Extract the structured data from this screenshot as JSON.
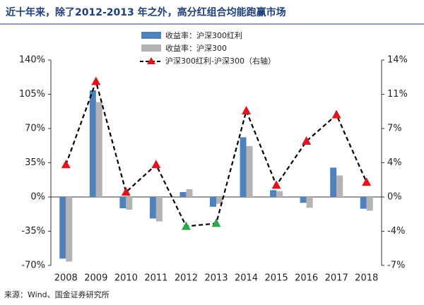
{
  "chart_data": {
    "type": "bar",
    "title": "近十年来，除了2012-2013 年之外，高分红组合均能跑赢市场",
    "source": "来源：Wind、国金证券研究所",
    "categories": [
      "2008",
      "2009",
      "2010",
      "2011",
      "2012",
      "2013",
      "2014",
      "2015",
      "2016",
      "2017",
      "2018"
    ],
    "series": [
      {
        "name": "收益率：沪深300红利",
        "color": "#4f81bd",
        "values": [
          -63,
          109,
          -11.5,
          -22,
          5,
          -10,
          61,
          7,
          -6,
          30,
          -12
        ]
      },
      {
        "name": "收益率：沪深300",
        "color": "#b4b4b4",
        "values": [
          -66,
          97,
          -13,
          -25,
          8,
          -7,
          52,
          6,
          -11,
          22,
          -14
        ]
      },
      {
        "name": "沪深300红利-沪深300（右轴）",
        "type": "line",
        "axis": "y2",
        "color": "#000000",
        "point_colors": [
          "#e0141e",
          "#e0141e",
          "#e0141e",
          "#e0141e",
          "#2aa84a",
          "#2aa84a",
          "#e0141e",
          "#e0141e",
          "#e0141e",
          "#e0141e",
          "#e0141e"
        ],
        "values": [
          3.3,
          11.8,
          0.5,
          3.3,
          -3.0,
          -2.7,
          8.8,
          1.2,
          5.7,
          8.4,
          1.5
        ]
      }
    ],
    "ylim": [
      -70,
      140
    ],
    "yticks": [
      {
        "value": -70,
        "label": "-70%"
      },
      {
        "value": -35,
        "label": "-35%"
      },
      {
        "value": 0,
        "label": "0%"
      },
      {
        "value": 35,
        "label": "35%"
      },
      {
        "value": 70,
        "label": "70%"
      },
      {
        "value": 105,
        "label": "105%"
      },
      {
        "value": 140,
        "label": "140%"
      }
    ],
    "y2lim": [
      -7,
      14
    ],
    "y2ticks": [
      {
        "value": -7,
        "label": "-7%"
      },
      {
        "value": -3.5,
        "label": "-4%"
      },
      {
        "value": 0,
        "label": "0%"
      },
      {
        "value": 3.5,
        "label": "4%"
      },
      {
        "value": 7,
        "label": "7%"
      },
      {
        "value": 10.5,
        "label": "11%"
      },
      {
        "value": 14,
        "label": "14%"
      }
    ]
  }
}
